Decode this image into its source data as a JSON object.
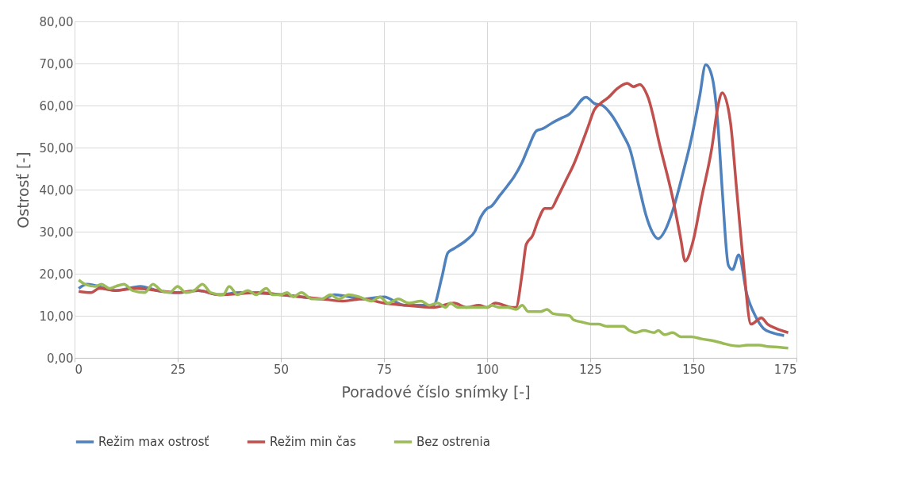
{
  "chart_data": {
    "type": "line",
    "xlabel": "Poradové číslo snímky [-]",
    "ylabel": "Ostrosť [-]",
    "xlim": [
      0,
      175
    ],
    "xticks": [
      0,
      25,
      50,
      75,
      100,
      125,
      150,
      175
    ],
    "ylim": [
      0,
      80
    ],
    "yticks": [
      {
        "value": 0,
        "label": "0,00"
      },
      {
        "value": 10,
        "label": "10,00"
      },
      {
        "value": 20,
        "label": "20,00"
      },
      {
        "value": 30,
        "label": "30,00"
      },
      {
        "value": 40,
        "label": "40,00"
      },
      {
        "value": 50,
        "label": "50,00"
      },
      {
        "value": 60,
        "label": "60,00"
      },
      {
        "value": 70,
        "label": "70,00"
      },
      {
        "value": 80,
        "label": "80,00"
      }
    ],
    "grid": true,
    "legend": "bottom",
    "marker": "none",
    "line_style": "solid",
    "series": [
      {
        "name": "Režim max ostrosť",
        "color": "#4f81bd",
        "x": [
          1,
          3,
          10,
          16,
          20,
          25,
          30,
          35,
          40,
          50,
          55,
          60,
          63,
          70,
          75,
          80,
          87,
          89,
          90.5,
          92,
          95,
          97,
          98.5,
          100,
          101,
          103,
          105,
          106.5,
          108.5,
          110,
          112,
          113.5,
          116,
          118,
          120,
          121,
          124,
          126,
          128,
          130,
          133,
          134.5,
          137,
          138.5,
          140,
          141.5,
          143,
          145,
          147.5,
          149.5,
          151.5,
          153,
          154.5,
          156,
          157,
          158.5,
          159.5,
          161,
          163,
          165,
          167,
          169,
          172
        ],
        "values": [
          16.5,
          17.5,
          16,
          17,
          16,
          15.5,
          16,
          15,
          15.5,
          15,
          14.5,
          14,
          15,
          14,
          14.5,
          12.5,
          12.5,
          19,
          25,
          26,
          28,
          30,
          33.5,
          35.5,
          36,
          38.5,
          41,
          43,
          46.5,
          50,
          54,
          54.5,
          56,
          57,
          58,
          59,
          62,
          60.5,
          60,
          58,
          53,
          50,
          40,
          34,
          30,
          28.3,
          30,
          35,
          44,
          52,
          62,
          69.7,
          67,
          55,
          40,
          22,
          21,
          24.5,
          15,
          10,
          7,
          6,
          5.3
        ]
      },
      {
        "name": "Režim min čas",
        "color": "#c0504d",
        "x": [
          1,
          4,
          6,
          10,
          15,
          20,
          25,
          30,
          35,
          45,
          50,
          55,
          60,
          65,
          70,
          75,
          80,
          87,
          92,
          95,
          98,
          100,
          102,
          106,
          107,
          108.5,
          109.5,
          111,
          112.5,
          114,
          115.5,
          117,
          119,
          121,
          123,
          124.5,
          126,
          127.5,
          129.5,
          131.5,
          134,
          135.5,
          137,
          139,
          142,
          145,
          147,
          148,
          150,
          152,
          154.5,
          156,
          157,
          159,
          160.5,
          162,
          164,
          166.5,
          168,
          170,
          173
        ],
        "values": [
          15.8,
          15.5,
          16.5,
          16,
          16.5,
          16,
          15.5,
          16,
          15,
          15.5,
          15,
          14.5,
          14,
          13.5,
          14,
          13,
          12.5,
          12,
          13,
          12,
          12.5,
          12,
          13,
          12,
          12,
          20,
          27,
          29,
          33,
          35.5,
          35.5,
          38,
          42,
          46,
          51,
          55,
          59,
          60.5,
          62,
          64,
          65.3,
          64.5,
          65,
          62,
          50,
          38,
          28,
          23,
          28,
          38,
          50,
          60,
          63,
          56,
          40,
          24,
          8,
          9.5,
          8,
          7,
          6
        ]
      },
      {
        "name": "Bez ostrenia",
        "color": "#9bbb59",
        "x": [
          1,
          2.5,
          5,
          6.5,
          8.5,
          10,
          12,
          14,
          17,
          19,
          21,
          23,
          25,
          27,
          29,
          31,
          33,
          36,
          37.5,
          39.5,
          42,
          44,
          46.5,
          48,
          50,
          51.5,
          53,
          55,
          57.5,
          60,
          62,
          64,
          66.5,
          69,
          72,
          74,
          76,
          78.5,
          81,
          84,
          86,
          88,
          90,
          91,
          93,
          96,
          98,
          100,
          101,
          103,
          105,
          107,
          108.5,
          110,
          113,
          114.5,
          116,
          120,
          121,
          123,
          125.5,
          127,
          129,
          133,
          134.5,
          136,
          138,
          140.5,
          141.5,
          143,
          145,
          147,
          149.5,
          152,
          155,
          157,
          159,
          161,
          163,
          166,
          168,
          171,
          173
        ],
        "values": [
          18.5,
          17.5,
          17,
          17.5,
          16.5,
          17,
          17.5,
          16,
          15.5,
          17.5,
          16,
          15.5,
          17,
          15.5,
          16,
          17.5,
          15.5,
          15,
          17,
          15,
          16,
          15,
          16.5,
          15,
          15,
          15.5,
          14.5,
          15.5,
          14,
          14,
          15,
          14,
          15,
          14.5,
          13.5,
          14.5,
          13,
          14,
          13,
          13.5,
          12.5,
          13,
          12,
          13,
          12,
          12,
          12,
          12,
          12.5,
          12,
          12,
          11.5,
          12.5,
          11,
          11,
          11.5,
          10.5,
          10,
          9,
          8.5,
          8,
          8,
          7.5,
          7.5,
          6.5,
          6,
          6.5,
          6,
          6.5,
          5.5,
          6,
          5,
          5,
          4.5,
          4,
          3.5,
          3,
          2.8,
          3,
          3,
          2.7,
          2.5,
          2.3
        ]
      }
    ]
  }
}
